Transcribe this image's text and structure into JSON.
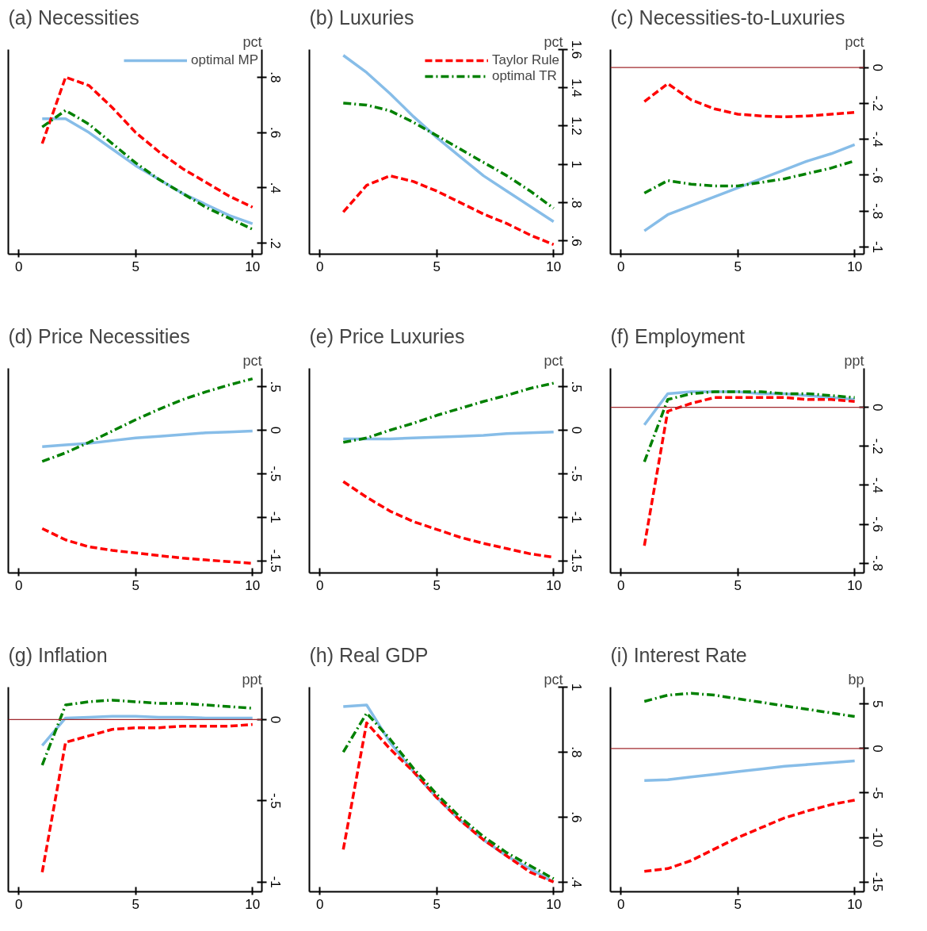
{
  "chart_data": [
    {
      "type": "line",
      "title": "(a) Necessities",
      "ylabel": "pct",
      "x": [
        1,
        2,
        3,
        4,
        5,
        6,
        7,
        8,
        9,
        10
      ],
      "xlim": [
        -0.45,
        10.4
      ],
      "xticks": [
        0,
        5,
        10
      ],
      "ylim": [
        0.16,
        0.9
      ],
      "yticks": [
        {
          "value": 0.2,
          "label": ".2"
        },
        {
          "value": 0.4,
          "label": ".4"
        },
        {
          "value": 0.6,
          "label": ".6"
        },
        {
          "value": 0.8,
          "label": ".8"
        }
      ],
      "legend": "top right",
      "series": [
        {
          "name": "optimal MP",
          "color": "#87bde8",
          "line_style": "solid",
          "values": [
            0.65,
            0.65,
            0.6,
            0.54,
            0.48,
            0.43,
            0.38,
            0.34,
            0.3,
            0.27
          ]
        },
        {
          "color": "#ff0000",
          "line_style": "dashed",
          "values": [
            0.56,
            0.8,
            0.77,
            0.69,
            0.6,
            0.53,
            0.47,
            0.42,
            0.37,
            0.33
          ]
        },
        {
          "color": "#008000",
          "line_style": "dashdot",
          "values": [
            0.62,
            0.68,
            0.63,
            0.56,
            0.49,
            0.43,
            0.38,
            0.33,
            0.29,
            0.25
          ]
        }
      ]
    },
    {
      "type": "line",
      "title": "(b) Luxuries",
      "ylabel": "pct",
      "x": [
        1,
        2,
        3,
        4,
        5,
        6,
        7,
        8,
        9,
        10
      ],
      "xlim": [
        -0.45,
        10.4
      ],
      "xticks": [
        0,
        5,
        10
      ],
      "ylim": [
        0.53,
        1.6
      ],
      "yticks": [
        {
          "value": 0.6,
          "label": ".6"
        },
        {
          "value": 0.8,
          "label": ".8"
        },
        1,
        1.2,
        1.4,
        1.6
      ],
      "legend": "top right",
      "series": [
        {
          "color": "#87bde8",
          "line_style": "solid",
          "values": [
            1.57,
            1.48,
            1.37,
            1.25,
            1.14,
            1.04,
            0.94,
            0.86,
            0.78,
            0.7
          ]
        },
        {
          "name": "Taylor Rule",
          "color": "#ff0000",
          "line_style": "dashed",
          "values": [
            0.75,
            0.89,
            0.94,
            0.91,
            0.86,
            0.8,
            0.74,
            0.69,
            0.63,
            0.58
          ]
        },
        {
          "name": "optimal TR",
          "color": "#008000",
          "line_style": "dashdot",
          "values": [
            1.32,
            1.31,
            1.28,
            1.22,
            1.15,
            1.08,
            1.01,
            0.94,
            0.86,
            0.77
          ]
        }
      ]
    },
    {
      "type": "line",
      "title": "(c) Necessities-to-Luxuries",
      "ylabel": "pct",
      "x": [
        1,
        2,
        3,
        4,
        5,
        6,
        7,
        8,
        9,
        10
      ],
      "xlim": [
        -0.45,
        10.4
      ],
      "xticks": [
        0,
        5,
        10
      ],
      "ylim": [
        -1.04,
        0.1
      ],
      "yticks": [
        {
          "value": -1,
          "label": "-1"
        },
        {
          "value": -0.8,
          "label": "-.8"
        },
        {
          "value": -0.6,
          "label": "-.6"
        },
        {
          "value": -0.4,
          "label": "-.4"
        },
        {
          "value": -0.2,
          "label": "-.2"
        },
        0
      ],
      "ref_lines": [
        {
          "axis": "y",
          "value": 0,
          "color": "#a0282d"
        }
      ],
      "series": [
        {
          "color": "#87bde8",
          "line_style": "solid",
          "values": [
            -0.91,
            -0.82,
            -0.77,
            -0.72,
            -0.67,
            -0.62,
            -0.57,
            -0.52,
            -0.48,
            -0.43
          ]
        },
        {
          "color": "#ff0000",
          "line_style": "dashed",
          "values": [
            -0.19,
            -0.09,
            -0.18,
            -0.23,
            -0.26,
            -0.27,
            -0.275,
            -0.27,
            -0.26,
            -0.25
          ]
        },
        {
          "color": "#008000",
          "line_style": "dashdot",
          "values": [
            -0.7,
            -0.63,
            -0.65,
            -0.66,
            -0.66,
            -0.64,
            -0.62,
            -0.59,
            -0.56,
            -0.52
          ]
        }
      ]
    },
    {
      "type": "line",
      "title": "(d) Price Necessities",
      "ylabel": "pct",
      "x": [
        1,
        2,
        3,
        4,
        5,
        6,
        7,
        8,
        9,
        10
      ],
      "xlim": [
        -0.45,
        10.4
      ],
      "xticks": [
        0,
        5,
        10
      ],
      "ylim": [
        -1.64,
        0.71
      ],
      "yticks": [
        {
          "value": -1.5,
          "label": "-1.5"
        },
        -1,
        {
          "value": -0.5,
          "label": "-.5"
        },
        0,
        {
          "value": 0.5,
          "label": ".5"
        }
      ],
      "series": [
        {
          "color": "#87bde8",
          "line_style": "solid",
          "values": [
            -0.19,
            -0.17,
            -0.15,
            -0.12,
            -0.09,
            -0.07,
            -0.05,
            -0.03,
            -0.02,
            -0.01
          ]
        },
        {
          "color": "#ff0000",
          "line_style": "dashed",
          "values": [
            -1.13,
            -1.26,
            -1.34,
            -1.38,
            -1.41,
            -1.44,
            -1.47,
            -1.49,
            -1.51,
            -1.53
          ]
        },
        {
          "color": "#008000",
          "line_style": "dashdot",
          "values": [
            -0.36,
            -0.26,
            -0.14,
            -0.01,
            0.12,
            0.24,
            0.35,
            0.44,
            0.52,
            0.59
          ]
        }
      ]
    },
    {
      "type": "line",
      "title": "(e) Price Luxuries",
      "ylabel": "pct",
      "x": [
        1,
        2,
        3,
        4,
        5,
        6,
        7,
        8,
        9,
        10
      ],
      "xlim": [
        -0.45,
        10.4
      ],
      "xticks": [
        0,
        5,
        10
      ],
      "ylim": [
        -1.64,
        0.71
      ],
      "yticks": [
        {
          "value": -1.5,
          "label": "-1.5"
        },
        -1,
        {
          "value": -0.5,
          "label": "-.5"
        },
        0,
        {
          "value": 0.5,
          "label": ".5"
        }
      ],
      "series": [
        {
          "color": "#87bde8",
          "line_style": "solid",
          "values": [
            -0.1,
            -0.1,
            -0.1,
            -0.09,
            -0.08,
            -0.07,
            -0.06,
            -0.04,
            -0.03,
            -0.02
          ]
        },
        {
          "color": "#ff0000",
          "line_style": "dashed",
          "values": [
            -0.59,
            -0.77,
            -0.93,
            -1.05,
            -1.14,
            -1.23,
            -1.3,
            -1.36,
            -1.42,
            -1.46
          ]
        },
        {
          "color": "#008000",
          "line_style": "dashdot",
          "values": [
            -0.14,
            -0.09,
            0.0,
            0.08,
            0.17,
            0.25,
            0.33,
            0.4,
            0.48,
            0.54
          ]
        }
      ]
    },
    {
      "type": "line",
      "title": "(f) Employment",
      "ylabel": "ppt",
      "x": [
        1,
        2,
        3,
        4,
        5,
        6,
        7,
        8,
        9,
        10
      ],
      "xlim": [
        -0.45,
        10.4
      ],
      "xticks": [
        0,
        5,
        10
      ],
      "ylim": [
        -0.85,
        0.2
      ],
      "yticks": [
        {
          "value": -0.8,
          "label": "-.8"
        },
        {
          "value": -0.6,
          "label": "-.6"
        },
        {
          "value": -0.4,
          "label": "-.4"
        },
        {
          "value": -0.2,
          "label": "-.2"
        },
        0
      ],
      "ref_lines": [
        {
          "axis": "y",
          "value": 0,
          "color": "#a0282d"
        }
      ],
      "series": [
        {
          "color": "#87bde8",
          "line_style": "solid",
          "values": [
            -0.09,
            0.07,
            0.08,
            0.08,
            0.08,
            0.07,
            0.07,
            0.06,
            0.05,
            0.04
          ]
        },
        {
          "color": "#ff0000",
          "line_style": "dashed",
          "values": [
            -0.71,
            -0.02,
            0.02,
            0.05,
            0.05,
            0.05,
            0.05,
            0.04,
            0.04,
            0.03
          ]
        },
        {
          "color": "#008000",
          "line_style": "dashdot",
          "values": [
            -0.28,
            0.04,
            0.07,
            0.08,
            0.08,
            0.08,
            0.07,
            0.07,
            0.06,
            0.05
          ]
        }
      ]
    },
    {
      "type": "line",
      "title": "(g) Inflation",
      "ylabel": "ppt",
      "x": [
        1,
        2,
        3,
        4,
        5,
        6,
        7,
        8,
        9,
        10
      ],
      "xlim": [
        -0.45,
        10.4
      ],
      "xticks": [
        0,
        5,
        10
      ],
      "ylim": [
        -1.06,
        0.2
      ],
      "yticks": [
        -1,
        {
          "value": -0.5,
          "label": "-.5"
        },
        0
      ],
      "ref_lines": [
        {
          "axis": "y",
          "value": 0,
          "color": "#a0282d"
        }
      ],
      "series": [
        {
          "color": "#87bde8",
          "line_style": "solid",
          "values": [
            -0.16,
            0.01,
            0.015,
            0.02,
            0.02,
            0.015,
            0.015,
            0.01,
            0.01,
            0.01
          ]
        },
        {
          "color": "#ff0000",
          "line_style": "dashed",
          "values": [
            -0.94,
            -0.14,
            -0.1,
            -0.06,
            -0.05,
            -0.05,
            -0.04,
            -0.04,
            -0.04,
            -0.03
          ]
        },
        {
          "color": "#008000",
          "line_style": "dashdot",
          "values": [
            -0.28,
            0.09,
            0.11,
            0.12,
            0.11,
            0.1,
            0.1,
            0.09,
            0.08,
            0.07
          ]
        }
      ]
    },
    {
      "type": "line",
      "title": "(h) Real GDP",
      "ylabel": "pct",
      "x": [
        1,
        2,
        3,
        4,
        5,
        6,
        7,
        8,
        9,
        10
      ],
      "xlim": [
        -0.45,
        10.4
      ],
      "xticks": [
        0,
        5,
        10
      ],
      "ylim": [
        0.37,
        1.0
      ],
      "yticks": [
        {
          "value": 0.4,
          "label": ".4"
        },
        {
          "value": 0.6,
          "label": ".6"
        },
        {
          "value": 0.8,
          "label": ".8"
        },
        1
      ],
      "series": [
        {
          "color": "#87bde8",
          "line_style": "solid",
          "values": [
            0.94,
            0.945,
            0.83,
            0.74,
            0.66,
            0.59,
            0.53,
            0.48,
            0.44,
            0.4
          ]
        },
        {
          "color": "#ff0000",
          "line_style": "dashed",
          "values": [
            0.5,
            0.89,
            0.81,
            0.74,
            0.66,
            0.59,
            0.53,
            0.48,
            0.43,
            0.4
          ]
        },
        {
          "color": "#008000",
          "line_style": "dashdot",
          "values": [
            0.8,
            0.92,
            0.84,
            0.75,
            0.67,
            0.6,
            0.54,
            0.49,
            0.45,
            0.41
          ]
        }
      ]
    },
    {
      "type": "line",
      "title": "(i) Interest Rate",
      "ylabel": "bp",
      "x": [
        1,
        2,
        3,
        4,
        5,
        6,
        7,
        8,
        9,
        10
      ],
      "xlim": [
        -0.45,
        10.4
      ],
      "xticks": [
        0,
        5,
        10
      ],
      "ylim": [
        -16.1,
        6.9
      ],
      "yticks": [
        -15,
        -10,
        -5,
        0,
        5
      ],
      "ref_lines": [
        {
          "axis": "y",
          "value": 0,
          "color": "#a0282d"
        }
      ],
      "series": [
        {
          "color": "#87bde8",
          "line_style": "solid",
          "values": [
            -3.6,
            -3.5,
            -3.2,
            -2.9,
            -2.6,
            -2.3,
            -2.0,
            -1.8,
            -1.6,
            -1.4
          ]
        },
        {
          "color": "#ff0000",
          "line_style": "dashed",
          "values": [
            -13.8,
            -13.5,
            -12.6,
            -11.3,
            -10.0,
            -8.9,
            -7.8,
            -7.0,
            -6.3,
            -5.8
          ]
        },
        {
          "color": "#008000",
          "line_style": "dashdot",
          "values": [
            5.3,
            6.0,
            6.2,
            6.0,
            5.6,
            5.2,
            4.8,
            4.4,
            4.0,
            3.6
          ]
        }
      ]
    }
  ]
}
